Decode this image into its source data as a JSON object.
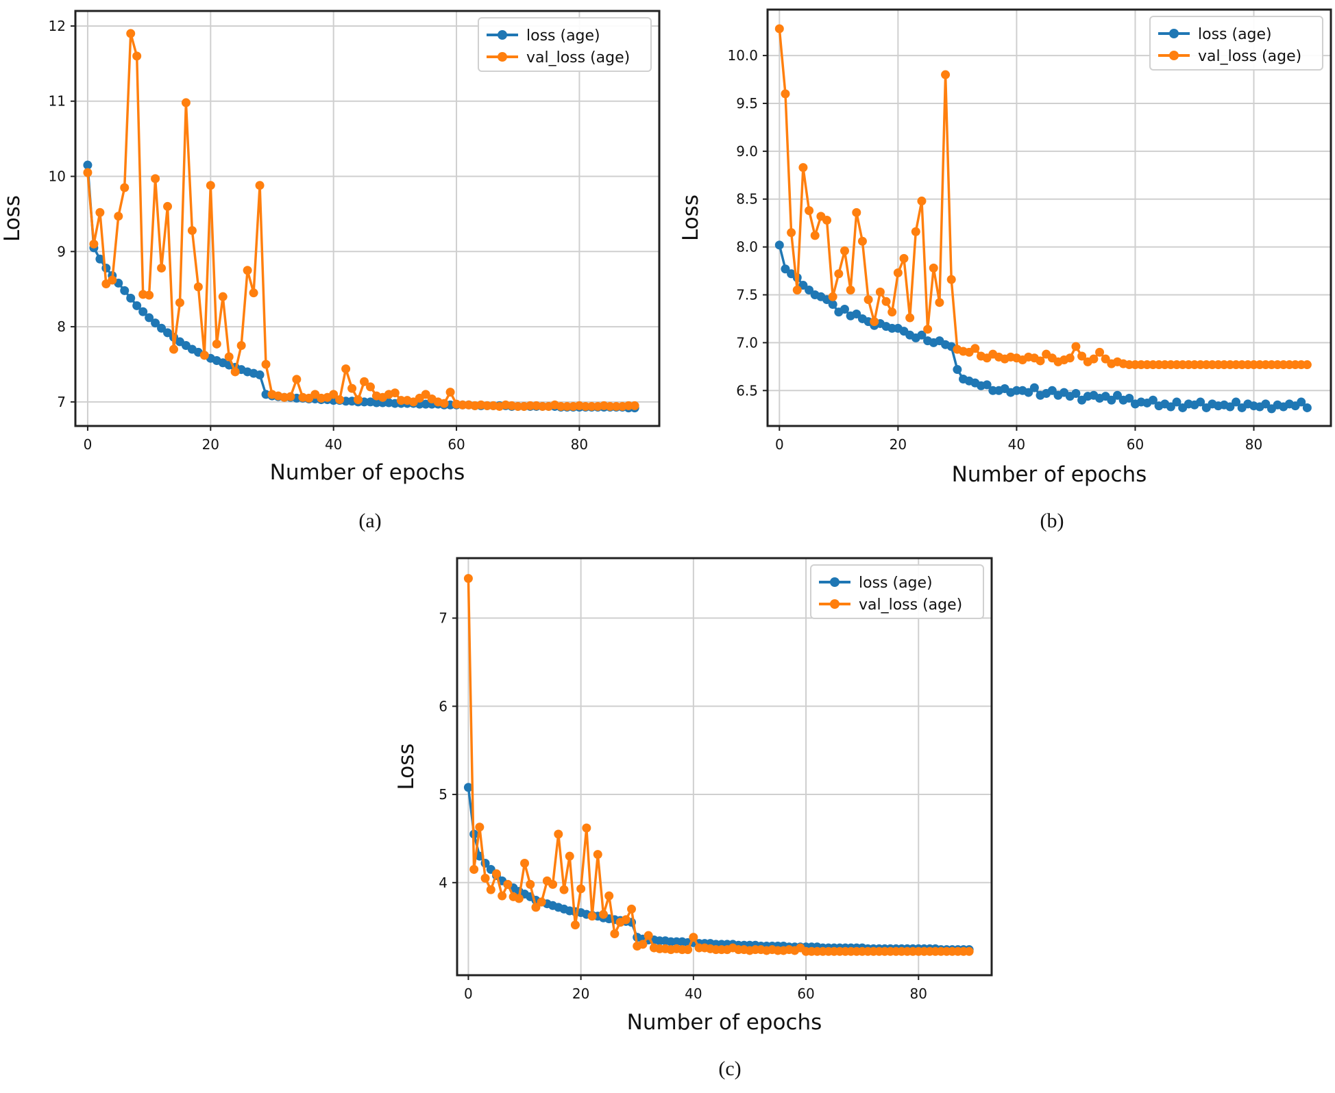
{
  "figure": {
    "captions": [
      "(a)",
      "(b)",
      "(c)"
    ]
  },
  "chart_data": [
    {
      "type": "line",
      "panel": "(a)",
      "xlabel": "Number of epochs",
      "ylabel": "Loss",
      "xlim": [
        -2,
        93
      ],
      "ylim": [
        6.68,
        12.2
      ],
      "xticks": [
        0,
        20,
        40,
        60,
        80
      ],
      "xtick_labels": [
        "0",
        "20",
        "40",
        "60",
        "80"
      ],
      "yticks": [
        7,
        8,
        9,
        10,
        11,
        12
      ],
      "ytick_labels": [
        "7",
        "8",
        "9",
        "10",
        "11",
        "12"
      ],
      "grid": true,
      "legend_position": "top-right",
      "colors": {
        "loss": "#1f77b4",
        "val_loss": "#ff7f0e"
      },
      "series": [
        {
          "name": "loss (age)",
          "values": [
            10.15,
            9.05,
            8.9,
            8.78,
            8.68,
            8.58,
            8.48,
            8.38,
            8.28,
            8.2,
            8.12,
            8.05,
            7.98,
            7.92,
            7.86,
            7.8,
            7.75,
            7.7,
            7.66,
            7.62,
            7.58,
            7.55,
            7.52,
            7.49,
            7.46,
            7.43,
            7.4,
            7.38,
            7.36,
            7.1,
            7.08,
            7.07,
            7.06,
            7.06,
            7.05,
            7.05,
            7.04,
            7.04,
            7.03,
            7.03,
            7.02,
            7.02,
            7.01,
            7.01,
            7.0,
            7.0,
            7.0,
            6.99,
            6.99,
            6.99,
            6.98,
            6.98,
            6.98,
            6.98,
            6.97,
            6.97,
            6.97,
            6.97,
            6.96,
            6.96,
            6.96,
            6.96,
            6.96,
            6.95,
            6.95,
            6.95,
            6.95,
            6.95,
            6.95,
            6.94,
            6.94,
            6.94,
            6.94,
            6.94,
            6.94,
            6.94,
            6.94,
            6.93,
            6.93,
            6.93,
            6.93,
            6.93,
            6.93,
            6.93,
            6.93,
            6.93,
            6.93,
            6.93,
            6.92,
            6.92
          ]
        },
        {
          "name": "val_loss (age)",
          "values": [
            10.05,
            9.1,
            9.52,
            8.57,
            8.62,
            9.47,
            9.85,
            11.9,
            11.6,
            8.43,
            8.42,
            9.97,
            8.78,
            9.6,
            7.7,
            8.32,
            10.98,
            9.28,
            8.53,
            7.62,
            9.88,
            7.77,
            8.4,
            7.6,
            7.4,
            7.75,
            8.75,
            8.45,
            9.88,
            7.5,
            7.1,
            7.08,
            7.06,
            7.07,
            7.3,
            7.06,
            7.05,
            7.1,
            7.05,
            7.06,
            7.1,
            7.03,
            7.44,
            7.18,
            7.03,
            7.27,
            7.2,
            7.08,
            7.06,
            7.1,
            7.12,
            7.02,
            7.02,
            7.0,
            7.05,
            7.1,
            7.04,
            7.0,
            6.98,
            7.13,
            6.97,
            6.96,
            6.96,
            6.95,
            6.96,
            6.95,
            6.95,
            6.94,
            6.96,
            6.95,
            6.94,
            6.94,
            6.95,
            6.95,
            6.94,
            6.94,
            6.96,
            6.94,
            6.94,
            6.94,
            6.95,
            6.94,
            6.94,
            6.94,
            6.95,
            6.94,
            6.94,
            6.94,
            6.95,
            6.95
          ]
        }
      ]
    },
    {
      "type": "line",
      "panel": "(b)",
      "xlabel": "Number of epochs",
      "ylabel": "Loss",
      "xlim": [
        -2,
        93
      ],
      "ylim": [
        6.13,
        10.48
      ],
      "xticks": [
        0,
        20,
        40,
        60,
        80
      ],
      "xtick_labels": [
        "0",
        "20",
        "40",
        "60",
        "80"
      ],
      "yticks": [
        6.5,
        7.0,
        7.5,
        8.0,
        8.5,
        9.0,
        9.5,
        10.0
      ],
      "ytick_labels": [
        "6.5",
        "7.0",
        "7.5",
        "8.0",
        "8.5",
        "9.0",
        "9.5",
        "10.0"
      ],
      "grid": true,
      "legend_position": "top-right",
      "colors": {
        "loss": "#1f77b4",
        "val_loss": "#ff7f0e"
      },
      "series": [
        {
          "name": "loss (age)",
          "values": [
            8.02,
            7.77,
            7.72,
            7.68,
            7.6,
            7.55,
            7.5,
            7.48,
            7.45,
            7.4,
            7.32,
            7.35,
            7.28,
            7.3,
            7.25,
            7.22,
            7.18,
            7.2,
            7.17,
            7.15,
            7.15,
            7.12,
            7.08,
            7.05,
            7.08,
            7.02,
            7.0,
            7.02,
            6.98,
            6.96,
            6.72,
            6.62,
            6.6,
            6.58,
            6.55,
            6.56,
            6.5,
            6.5,
            6.52,
            6.48,
            6.5,
            6.5,
            6.48,
            6.53,
            6.45,
            6.47,
            6.5,
            6.45,
            6.48,
            6.44,
            6.47,
            6.4,
            6.44,
            6.45,
            6.42,
            6.44,
            6.4,
            6.45,
            6.4,
            6.42,
            6.36,
            6.38,
            6.37,
            6.4,
            6.34,
            6.36,
            6.33,
            6.38,
            6.32,
            6.36,
            6.35,
            6.38,
            6.32,
            6.36,
            6.34,
            6.35,
            6.33,
            6.38,
            6.32,
            6.36,
            6.34,
            6.33,
            6.36,
            6.31,
            6.35,
            6.33,
            6.36,
            6.34,
            6.38,
            6.32
          ]
        },
        {
          "name": "val_loss (age)",
          "values": [
            10.28,
            9.6,
            8.15,
            7.55,
            8.83,
            8.38,
            8.12,
            8.32,
            8.28,
            7.48,
            7.72,
            7.96,
            7.55,
            8.36,
            8.06,
            7.45,
            7.22,
            7.53,
            7.43,
            7.32,
            7.73,
            7.88,
            7.26,
            8.16,
            8.48,
            7.14,
            7.78,
            7.42,
            9.8,
            7.66,
            6.93,
            6.91,
            6.9,
            6.94,
            6.86,
            6.84,
            6.88,
            6.85,
            6.83,
            6.85,
            6.84,
            6.82,
            6.85,
            6.84,
            6.81,
            6.88,
            6.84,
            6.8,
            6.82,
            6.84,
            6.96,
            6.86,
            6.8,
            6.83,
            6.9,
            6.83,
            6.78,
            6.8,
            6.78,
            6.77,
            6.77,
            6.77,
            6.77,
            6.77,
            6.77,
            6.77,
            6.77,
            6.77,
            6.77,
            6.77,
            6.77,
            6.77,
            6.77,
            6.77,
            6.77,
            6.77,
            6.77,
            6.77,
            6.77,
            6.77,
            6.77,
            6.77,
            6.77,
            6.77,
            6.77,
            6.77,
            6.77,
            6.77,
            6.77,
            6.77
          ]
        }
      ]
    },
    {
      "type": "line",
      "panel": "(c)",
      "xlabel": "Number of epochs",
      "ylabel": "Loss",
      "xlim": [
        -2,
        93
      ],
      "ylim": [
        2.95,
        7.68
      ],
      "xticks": [
        0,
        20,
        40,
        60,
        80
      ],
      "xtick_labels": [
        "0",
        "20",
        "40",
        "60",
        "80"
      ],
      "yticks": [
        4,
        5,
        6,
        7
      ],
      "ytick_labels": [
        "4",
        "5",
        "6",
        "7"
      ],
      "grid": true,
      "legend_position": "top-right",
      "colors": {
        "loss": "#1f77b4",
        "val_loss": "#ff7f0e"
      },
      "series": [
        {
          "name": "loss (age)",
          "values": [
            5.08,
            4.55,
            4.3,
            4.22,
            4.15,
            4.08,
            4.02,
            3.98,
            3.94,
            3.9,
            3.87,
            3.84,
            3.8,
            3.78,
            3.76,
            3.74,
            3.72,
            3.7,
            3.68,
            3.67,
            3.66,
            3.64,
            3.63,
            3.62,
            3.6,
            3.59,
            3.58,
            3.57,
            3.56,
            3.55,
            3.38,
            3.36,
            3.35,
            3.35,
            3.34,
            3.34,
            3.33,
            3.33,
            3.33,
            3.32,
            3.32,
            3.31,
            3.31,
            3.31,
            3.3,
            3.3,
            3.3,
            3.3,
            3.29,
            3.29,
            3.29,
            3.29,
            3.28,
            3.28,
            3.28,
            3.28,
            3.28,
            3.27,
            3.27,
            3.27,
            3.27,
            3.27,
            3.27,
            3.26,
            3.26,
            3.26,
            3.26,
            3.26,
            3.26,
            3.26,
            3.26,
            3.25,
            3.25,
            3.25,
            3.25,
            3.25,
            3.25,
            3.25,
            3.25,
            3.25,
            3.25,
            3.25,
            3.25,
            3.25,
            3.24,
            3.24,
            3.24,
            3.24,
            3.24,
            3.24
          ]
        },
        {
          "name": "val_loss (age)",
          "values": [
            7.45,
            4.15,
            4.63,
            4.05,
            3.92,
            4.1,
            3.85,
            3.98,
            3.84,
            3.82,
            4.22,
            3.98,
            3.72,
            3.78,
            4.02,
            3.98,
            4.55,
            3.92,
            4.3,
            3.52,
            3.93,
            4.62,
            3.62,
            4.32,
            3.64,
            3.85,
            3.42,
            3.55,
            3.58,
            3.7,
            3.28,
            3.3,
            3.4,
            3.26,
            3.25,
            3.25,
            3.24,
            3.25,
            3.24,
            3.24,
            3.38,
            3.26,
            3.26,
            3.25,
            3.24,
            3.24,
            3.24,
            3.26,
            3.24,
            3.24,
            3.23,
            3.24,
            3.24,
            3.23,
            3.24,
            3.23,
            3.23,
            3.24,
            3.23,
            3.26,
            3.22,
            3.22,
            3.22,
            3.22,
            3.22,
            3.22,
            3.22,
            3.22,
            3.22,
            3.22,
            3.22,
            3.22,
            3.22,
            3.22,
            3.22,
            3.22,
            3.22,
            3.22,
            3.22,
            3.22,
            3.22,
            3.22,
            3.22,
            3.22,
            3.22,
            3.22,
            3.22,
            3.22,
            3.22,
            3.22
          ]
        }
      ]
    }
  ]
}
